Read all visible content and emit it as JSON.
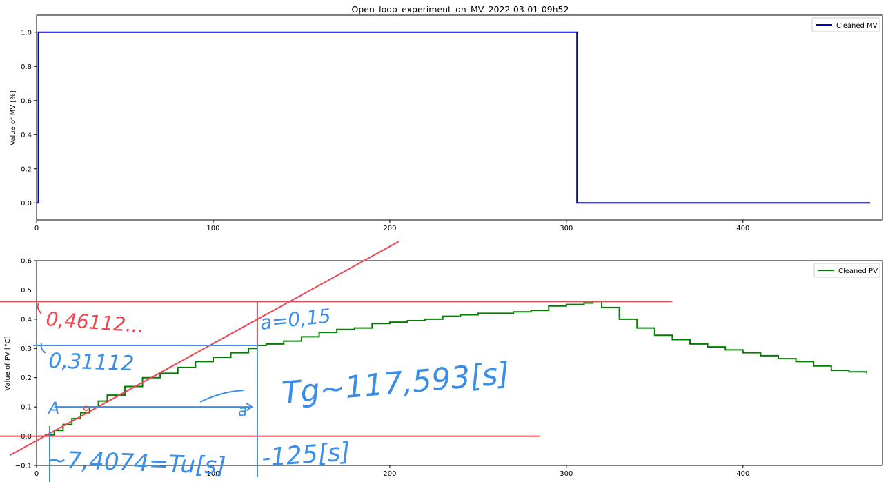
{
  "title": "Open_loop_experiment_on_MV_2022-03-01-09h52",
  "chart_data": [
    {
      "type": "line",
      "ylabel": "Value of MV [%]",
      "xlim": [
        0,
        479
      ],
      "ylim": [
        -0.1,
        1.1
      ],
      "xticks": [
        0,
        100,
        200,
        300,
        400
      ],
      "yticks": [
        0.0,
        0.2,
        0.4,
        0.6,
        0.8,
        1.0
      ],
      "ytick_labels": [
        "0.0",
        "0.2",
        "0.4",
        "0.6",
        "0.8",
        "1.0"
      ],
      "legend": "upper right",
      "series": [
        {
          "name": "Cleaned MV",
          "color": "#0000cc",
          "step": true,
          "x": [
            0,
            1,
            1,
            306,
            306,
            472
          ],
          "y": [
            0,
            0,
            1,
            1,
            0,
            0
          ]
        }
      ]
    },
    {
      "type": "line",
      "ylabel": "Value of PV [°C]",
      "xlim": [
        0,
        479
      ],
      "ylim": [
        -0.1,
        0.6
      ],
      "xticks": [
        0,
        100,
        200,
        300,
        400
      ],
      "yticks": [
        -0.1,
        0.0,
        0.1,
        0.2,
        0.3,
        0.4,
        0.5,
        0.6
      ],
      "ytick_labels": [
        "−0.1",
        "0.0",
        "0.1",
        "0.2",
        "0.3",
        "0.4",
        "0.5",
        "0.6"
      ],
      "legend": "upper right",
      "series": [
        {
          "name": "Cleaned PV",
          "color": "#007f00",
          "step": true,
          "x": [
            0,
            5,
            10,
            15,
            20,
            25,
            30,
            35,
            40,
            50,
            60,
            70,
            80,
            90,
            100,
            110,
            120,
            125,
            130,
            140,
            150,
            160,
            170,
            180,
            190,
            200,
            210,
            220,
            230,
            240,
            250,
            260,
            270,
            280,
            290,
            300,
            310,
            315,
            320,
            330,
            340,
            350,
            360,
            370,
            380,
            390,
            400,
            410,
            420,
            430,
            440,
            450,
            460,
            470
          ],
          "y": [
            0.0,
            0.005,
            0.02,
            0.04,
            0.06,
            0.08,
            0.1,
            0.12,
            0.14,
            0.17,
            0.2,
            0.215,
            0.235,
            0.255,
            0.27,
            0.285,
            0.3,
            0.31,
            0.315,
            0.325,
            0.34,
            0.355,
            0.365,
            0.37,
            0.385,
            0.39,
            0.395,
            0.4,
            0.41,
            0.415,
            0.42,
            0.42,
            0.425,
            0.43,
            0.445,
            0.45,
            0.455,
            0.46,
            0.44,
            0.4,
            0.37,
            0.345,
            0.33,
            0.315,
            0.305,
            0.295,
            0.285,
            0.275,
            0.265,
            0.255,
            0.24,
            0.225,
            0.22,
            0.215
          ]
        }
      ]
    }
  ],
  "annotations": {
    "red_lines": {
      "color": "#f24550",
      "upper_level_y": 0.46,
      "lower_level_y": 0.0,
      "tangent_x": [
        -15,
        205
      ],
      "tangent_y": [
        -0.065,
        0.665
      ],
      "upper_level_x_end": 360,
      "lower_level_x_end": 285
    },
    "blue_lines": {
      "color": "#3a8ee8",
      "level_y": 0.31,
      "vertical_x": 125,
      "arrow_y": 0.1,
      "arrow_x": [
        10,
        122
      ]
    },
    "texts": {
      "upper_value": "0,46112...",
      "upper_level_value": "0,31112",
      "a_value": "a=0,15",
      "tg_value": "Tg~117,593[s]",
      "tu_value": "~7,4074=Tu[s]",
      "end_value": "-125[s]",
      "arrow_left_mark": "A",
      "arrow_right_mark": "a"
    }
  }
}
